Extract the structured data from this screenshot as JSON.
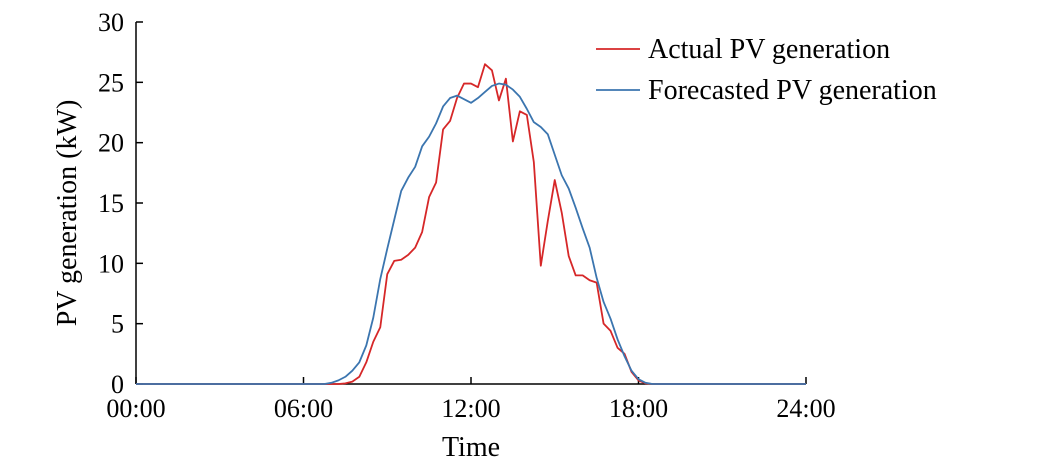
{
  "chart_data": {
    "type": "line",
    "title": "",
    "xlabel": "Time",
    "ylabel": "PV generation (kW)",
    "xlim": [
      0,
      24
    ],
    "ylim": [
      0,
      30
    ],
    "x_unit": "hours",
    "x_ticks": [
      {
        "value": 0,
        "label": "00:00"
      },
      {
        "value": 6,
        "label": "06:00"
      },
      {
        "value": 12,
        "label": "12:00"
      },
      {
        "value": 18,
        "label": "18:00"
      },
      {
        "value": 24,
        "label": "24:00"
      }
    ],
    "y_ticks": [
      0,
      5,
      10,
      15,
      20,
      25,
      30
    ],
    "grid": false,
    "legend_position": "top-right",
    "series": [
      {
        "name": "Actual PV generation",
        "color": "#d62728",
        "points": [
          [
            0,
            0
          ],
          [
            7.25,
            0
          ],
          [
            7.5,
            0.05
          ],
          [
            7.75,
            0.2
          ],
          [
            8.0,
            0.6
          ],
          [
            8.25,
            1.8
          ],
          [
            8.5,
            3.5
          ],
          [
            8.75,
            4.7
          ],
          [
            9.0,
            9.1
          ],
          [
            9.25,
            10.2
          ],
          [
            9.5,
            10.3
          ],
          [
            9.75,
            10.7
          ],
          [
            10.0,
            11.3
          ],
          [
            10.25,
            12.6
          ],
          [
            10.5,
            15.5
          ],
          [
            10.75,
            16.7
          ],
          [
            11.0,
            21.1
          ],
          [
            11.25,
            21.8
          ],
          [
            11.5,
            23.7
          ],
          [
            11.75,
            24.9
          ],
          [
            12.0,
            24.9
          ],
          [
            12.25,
            24.6
          ],
          [
            12.5,
            26.5
          ],
          [
            12.75,
            26.0
          ],
          [
            13.0,
            23.5
          ],
          [
            13.25,
            25.3
          ],
          [
            13.5,
            20.1
          ],
          [
            13.75,
            22.6
          ],
          [
            14.0,
            22.3
          ],
          [
            14.25,
            18.4
          ],
          [
            14.5,
            9.8
          ],
          [
            14.75,
            13.5
          ],
          [
            15.0,
            16.9
          ],
          [
            15.25,
            14.2
          ],
          [
            15.5,
            10.6
          ],
          [
            15.75,
            9.0
          ],
          [
            16.0,
            9.0
          ],
          [
            16.25,
            8.6
          ],
          [
            16.5,
            8.4
          ],
          [
            16.75,
            5.0
          ],
          [
            17.0,
            4.4
          ],
          [
            17.25,
            3.0
          ],
          [
            17.5,
            2.5
          ],
          [
            17.75,
            1.0
          ],
          [
            18.0,
            0.3
          ],
          [
            18.25,
            0.05
          ],
          [
            18.5,
            0
          ],
          [
            24,
            0
          ]
        ]
      },
      {
        "name": "Forecasted PV generation",
        "color": "#3b75af",
        "points": [
          [
            0,
            0
          ],
          [
            6.75,
            0
          ],
          [
            7.0,
            0.1
          ],
          [
            7.25,
            0.3
          ],
          [
            7.5,
            0.6
          ],
          [
            7.75,
            1.1
          ],
          [
            8.0,
            1.8
          ],
          [
            8.25,
            3.2
          ],
          [
            8.5,
            5.5
          ],
          [
            8.75,
            8.7
          ],
          [
            9.0,
            11.2
          ],
          [
            9.25,
            13.6
          ],
          [
            9.5,
            16.0
          ],
          [
            9.75,
            17.1
          ],
          [
            10.0,
            18.0
          ],
          [
            10.25,
            19.7
          ],
          [
            10.5,
            20.5
          ],
          [
            10.75,
            21.6
          ],
          [
            11.0,
            23.0
          ],
          [
            11.25,
            23.7
          ],
          [
            11.5,
            23.9
          ],
          [
            11.75,
            23.6
          ],
          [
            12.0,
            23.3
          ],
          [
            12.25,
            23.7
          ],
          [
            12.5,
            24.2
          ],
          [
            12.75,
            24.7
          ],
          [
            13.0,
            24.9
          ],
          [
            13.25,
            24.8
          ],
          [
            13.5,
            24.4
          ],
          [
            13.75,
            23.8
          ],
          [
            14.0,
            22.8
          ],
          [
            14.25,
            21.7
          ],
          [
            14.5,
            21.3
          ],
          [
            14.75,
            20.7
          ],
          [
            15.0,
            19.0
          ],
          [
            15.25,
            17.3
          ],
          [
            15.5,
            16.2
          ],
          [
            15.75,
            14.6
          ],
          [
            16.0,
            12.9
          ],
          [
            16.25,
            11.3
          ],
          [
            16.5,
            8.8
          ],
          [
            16.75,
            6.8
          ],
          [
            17.0,
            5.4
          ],
          [
            17.25,
            3.7
          ],
          [
            17.5,
            2.3
          ],
          [
            17.75,
            1.1
          ],
          [
            18.0,
            0.4
          ],
          [
            18.25,
            0.1
          ],
          [
            18.5,
            0
          ],
          [
            24,
            0
          ]
        ]
      }
    ]
  }
}
